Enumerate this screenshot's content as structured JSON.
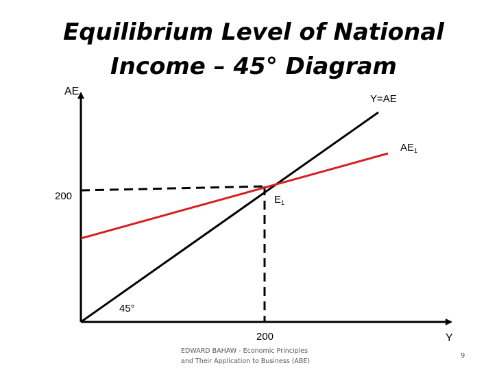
{
  "title": {
    "line1": "Equilibrium Level of National",
    "line2": "Income – 45° Diagram"
  },
  "diagram": {
    "y_axis_label": "AE",
    "x_axis_label": "Y",
    "lines": {
      "y_eq_ae": {
        "label": "Y=AE",
        "color": "#000000"
      },
      "ae1": {
        "label_main": "AE",
        "label_sub": "1",
        "color": "#d62020"
      }
    },
    "equilibrium": {
      "label_main": "E",
      "label_sub": "1",
      "x": 200,
      "y": 200
    },
    "ticks": {
      "x": "200",
      "y": "200"
    },
    "angle_label": "45°"
  },
  "footer": {
    "line1": "EDWARD BAHAW - Economic Principles",
    "line2": "and Their Application to Business (ABE)",
    "page_number": "9"
  }
}
